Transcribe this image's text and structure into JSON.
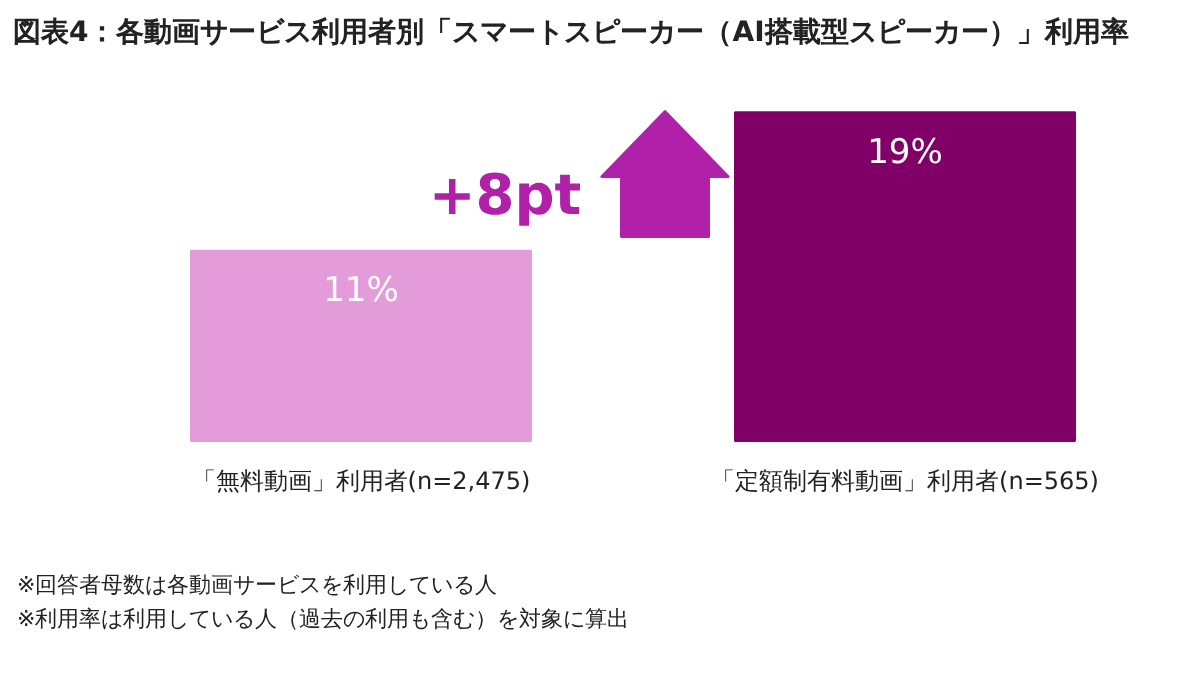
{
  "chart_data": {
    "type": "bar",
    "title": "図表4：各動画サービス利用者別「スマートスピーカー（AI搭載型スピーカー）」利用率",
    "categories": [
      "「無料動画」利用者(n=2,475)",
      "「定額制有料動画」利用者(n=565)"
    ],
    "values": [
      11,
      19
    ],
    "value_labels": [
      "11%",
      "19%"
    ],
    "colors": [
      "#e39cd9",
      "#800068"
    ],
    "grid": false,
    "annotations": [
      "+8pt",
      "※回答者母数は各動画サービスを利用している人",
      "※利用率は利用している人（過去の利用も含む）を対象に算出"
    ]
  }
}
